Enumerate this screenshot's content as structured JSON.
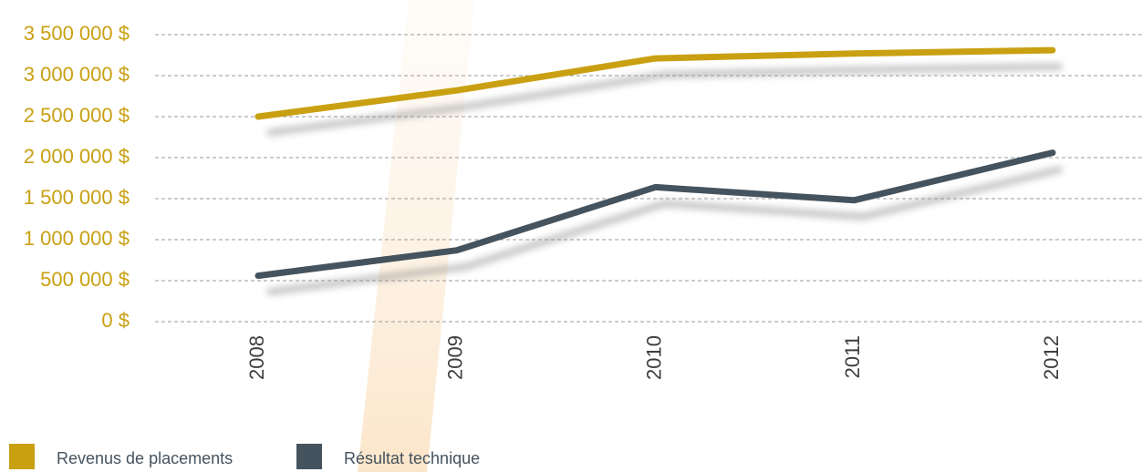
{
  "chart_data": {
    "type": "line",
    "categories": [
      "2008",
      "2009",
      "2010",
      "2011",
      "2012"
    ],
    "series": [
      {
        "name": "Revenus de placements",
        "color": "#c9a012",
        "values": [
          2500000,
          2820000,
          3210000,
          3270000,
          3310000
        ]
      },
      {
        "name": "Résultat technique",
        "color": "#45535e",
        "values": [
          560000,
          870000,
          1640000,
          1480000,
          2060000
        ]
      }
    ],
    "ylim": [
      0,
      3500000
    ],
    "yticks": [
      {
        "value": 0,
        "label": "0 $"
      },
      {
        "value": 500000,
        "label": "500 000 $"
      },
      {
        "value": 1000000,
        "label": "1 000 000 $"
      },
      {
        "value": 1500000,
        "label": "1 500 000 $"
      },
      {
        "value": 2000000,
        "label": "2 000 000 $"
      },
      {
        "value": 2500000,
        "label": "2 500 000 $"
      },
      {
        "value": 3000000,
        "label": "3 000 000 $"
      },
      {
        "value": 3500000,
        "label": "3 500 000 $"
      }
    ],
    "grid": true
  }
}
